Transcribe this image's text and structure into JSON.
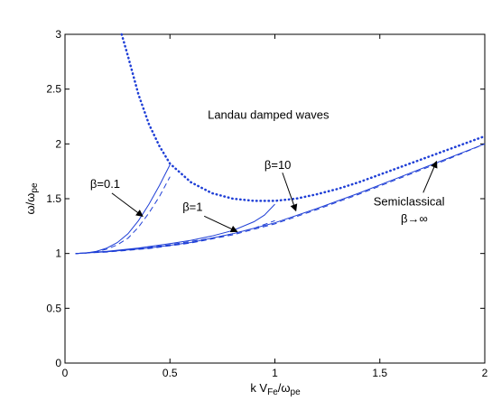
{
  "chart_data": {
    "type": "line",
    "xlabel": "k V_Fe/ω_pe",
    "xlabel_parts": {
      "pre": "k V",
      "sub1": "Fe",
      "mid": "/ω",
      "sub2": "pe"
    },
    "ylabel": "ω/ω_pe",
    "ylabel_parts": {
      "pre": "ω/ω",
      "sub": "pe"
    },
    "xlim": [
      0,
      2
    ],
    "ylim": [
      0,
      3
    ],
    "x_ticks": [
      "0",
      "0.5",
      "1",
      "1.5",
      "2"
    ],
    "y_ticks": [
      "0",
      "0.5",
      "1",
      "1.5",
      "2",
      "2.5",
      "3"
    ],
    "grid": false,
    "line_color": "#1f3fd6",
    "series": [
      {
        "style": "solid",
        "x": [
          0.05,
          0.1,
          0.15,
          0.2,
          0.25,
          0.3,
          0.35,
          0.4,
          0.45,
          0.5
        ],
        "y": [
          1.0,
          1.005,
          1.02,
          1.05,
          1.1,
          1.18,
          1.3,
          1.45,
          1.62,
          1.81
        ]
      },
      {
        "style": "dashed",
        "x": [
          0.05,
          0.1,
          0.15,
          0.2,
          0.25,
          0.3,
          0.35,
          0.4,
          0.45,
          0.5
        ],
        "y": [
          1.0,
          1.004,
          1.015,
          1.04,
          1.08,
          1.14,
          1.24,
          1.37,
          1.52,
          1.7
        ]
      },
      {
        "style": "solid",
        "x": [
          0.05,
          0.2,
          0.35,
          0.5,
          0.6,
          0.7,
          0.8,
          0.9,
          0.95,
          1.0
        ],
        "y": [
          1.0,
          1.02,
          1.05,
          1.09,
          1.12,
          1.16,
          1.21,
          1.29,
          1.35,
          1.45
        ]
      },
      {
        "style": "dashed",
        "x": [
          0.05,
          0.2,
          0.35,
          0.5,
          0.6,
          0.7,
          0.8,
          0.9,
          1.0
        ],
        "y": [
          1.0,
          1.018,
          1.045,
          1.08,
          1.11,
          1.14,
          1.18,
          1.23,
          1.3
        ]
      },
      {
        "style": "solid",
        "x": [
          0.05,
          0.2,
          0.4,
          0.6,
          0.8,
          1.0,
          1.2,
          1.4,
          1.6,
          1.8,
          2.0
        ],
        "y": [
          1.0,
          1.015,
          1.05,
          1.1,
          1.18,
          1.28,
          1.41,
          1.55,
          1.7,
          1.85,
          2.0
        ]
      },
      {
        "style": "dashed",
        "x": [
          0.05,
          0.2,
          0.4,
          0.6,
          0.8,
          1.0,
          1.2,
          1.4,
          1.6,
          1.8,
          2.0
        ],
        "y": [
          1.0,
          1.013,
          1.045,
          1.095,
          1.17,
          1.27,
          1.4,
          1.54,
          1.69,
          1.84,
          2.0
        ]
      },
      {
        "style": "dotted",
        "x": [
          0.27,
          0.3,
          0.35,
          0.4,
          0.45,
          0.5,
          0.6,
          0.7,
          0.8,
          0.9,
          1.0,
          1.1,
          1.2,
          1.3,
          1.4,
          1.5,
          1.6,
          1.7,
          1.8,
          1.9,
          2.0
        ],
        "y": [
          3.0,
          2.8,
          2.45,
          2.18,
          1.98,
          1.82,
          1.65,
          1.55,
          1.5,
          1.48,
          1.48,
          1.5,
          1.54,
          1.59,
          1.65,
          1.72,
          1.79,
          1.86,
          1.93,
          2.0,
          2.07
        ]
      }
    ],
    "annotations": [
      {
        "text": "Landau damped waves",
        "x": 0.68,
        "y": 2.23
      },
      {
        "text": "β=0.1",
        "x": 0.12,
        "y": 1.6,
        "arrow_to": [
          0.37,
          1.34
        ]
      },
      {
        "text": "β=1",
        "x": 0.56,
        "y": 1.39,
        "arrow_to": [
          0.82,
          1.2
        ]
      },
      {
        "text": "β=10",
        "x": 0.95,
        "y": 1.77,
        "arrow_to": [
          1.1,
          1.39
        ]
      },
      {
        "text": "Semiclassical",
        "x": 1.47,
        "y": 1.44,
        "arrow_to": [
          1.77,
          1.84
        ]
      },
      {
        "text": "β→∞",
        "x": 1.6,
        "y": 1.28
      }
    ]
  }
}
